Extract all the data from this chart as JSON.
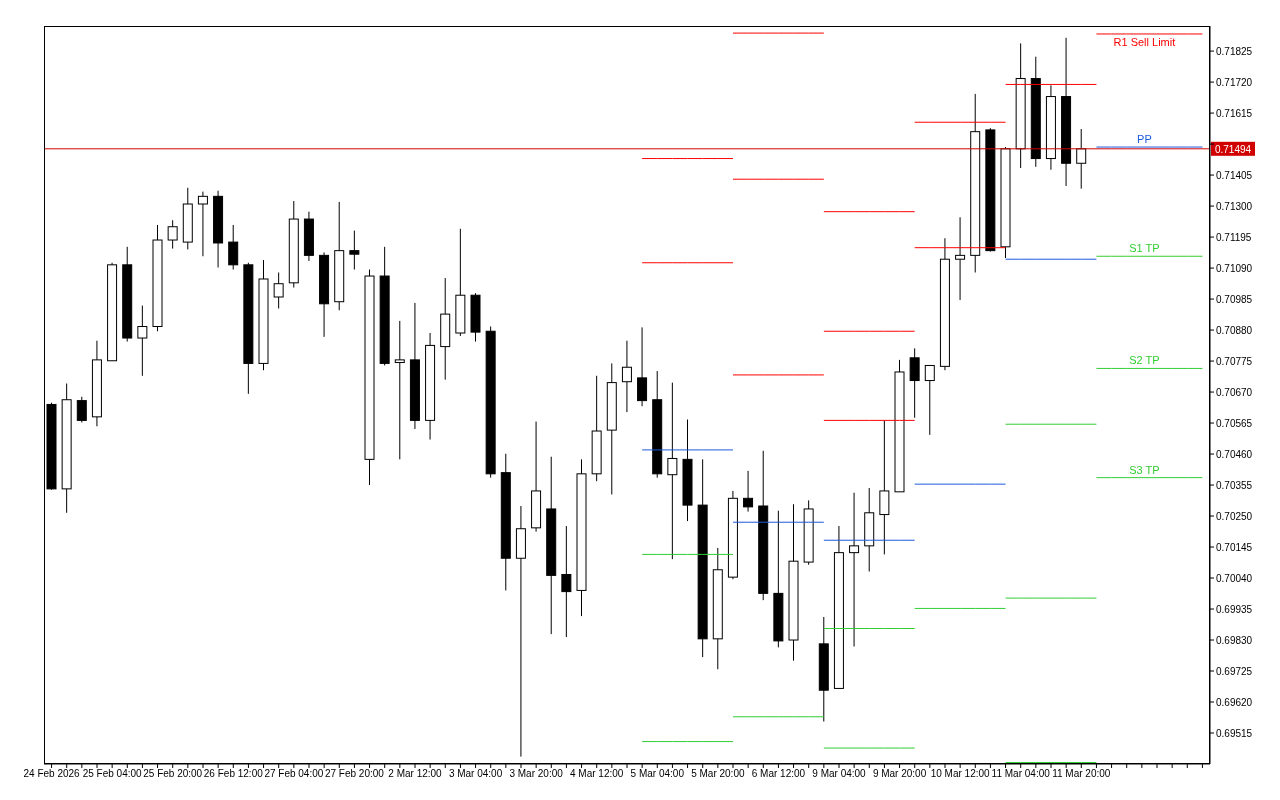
{
  "chart_data": {
    "type": "candlestick",
    "categories": [
      "24 Feb 2026",
      null,
      null,
      null,
      "25 Feb 04:00",
      null,
      null,
      null,
      "25 Feb 20:00",
      null,
      null,
      null,
      "26 Feb 12:00",
      null,
      null,
      null,
      "27 Feb 04:00",
      null,
      null,
      null,
      "27 Feb 20:00",
      null,
      null,
      null,
      "2 Mar 12:00",
      null,
      null,
      null,
      "3 Mar 04:00",
      null,
      null,
      null,
      "3 Mar 20:00",
      null,
      null,
      null,
      "4 Mar 12:00",
      null,
      null,
      null,
      "5 Mar 04:00",
      null,
      null,
      null,
      "5 Mar 20:00",
      null,
      null,
      null,
      "6 Mar 12:00",
      null,
      null,
      null,
      "9 Mar 04:00",
      null,
      null,
      null,
      "9 Mar 20:00",
      null,
      null,
      null,
      "10 Mar 12:00",
      null,
      null,
      null,
      "11 Mar 04:00",
      null,
      null,
      null,
      "11 Mar 20:00",
      null,
      null,
      null,
      null,
      null,
      null,
      null,
      null
    ],
    "ohlc": [
      [
        0.70628,
        0.70634,
        0.70339,
        0.70342
      ],
      [
        0.70342,
        0.70699,
        0.70261,
        0.70644
      ],
      [
        0.70641,
        0.70654,
        0.70567,
        0.70574
      ],
      [
        0.70586,
        0.70844,
        0.70554,
        0.70779
      ],
      [
        0.70776,
        0.71108,
        0.70776,
        0.71101
      ],
      [
        0.71101,
        0.71162,
        0.70841,
        0.70853
      ],
      [
        0.70853,
        0.70963,
        0.70725,
        0.70892
      ],
      [
        0.70892,
        0.71236,
        0.70876,
        0.71185
      ],
      [
        0.71185,
        0.71252,
        0.71156,
        0.7123
      ],
      [
        0.71178,
        0.71362,
        0.71153,
        0.71307
      ],
      [
        0.71307,
        0.71349,
        0.7113,
        0.71333
      ],
      [
        0.71333,
        0.71352,
        0.71092,
        0.71175
      ],
      [
        0.71178,
        0.71236,
        0.71085,
        0.71101
      ],
      [
        0.71101,
        0.71108,
        0.70664,
        0.70767
      ],
      [
        0.70767,
        0.71117,
        0.70744,
        0.71053
      ],
      [
        0.70992,
        0.71075,
        0.70953,
        0.71037
      ],
      [
        0.7104,
        0.71317,
        0.71024,
        0.71256
      ],
      [
        0.71256,
        0.71281,
        0.71114,
        0.71133
      ],
      [
        0.71133,
        0.71143,
        0.70857,
        0.70969
      ],
      [
        0.70976,
        0.71314,
        0.70947,
        0.71149
      ],
      [
        0.71149,
        0.71217,
        0.71085,
        0.71137
      ],
      [
        0.70442,
        0.71085,
        0.70355,
        0.71063
      ],
      [
        0.71063,
        0.71162,
        0.7076,
        0.70767
      ],
      [
        0.7077,
        0.70911,
        0.70442,
        0.70779
      ],
      [
        0.70779,
        0.70972,
        0.70545,
        0.70574
      ],
      [
        0.70574,
        0.7087,
        0.70509,
        0.70828
      ],
      [
        0.70824,
        0.71056,
        0.70712,
        0.70934
      ],
      [
        0.7087,
        0.71223,
        0.7086,
        0.70998
      ],
      [
        0.70998,
        0.71005,
        0.70841,
        0.70873
      ],
      [
        0.70876,
        0.70892,
        0.7038,
        0.70393
      ],
      [
        0.70397,
        0.70461,
        0.69998,
        0.70107
      ],
      [
        0.70107,
        0.70284,
        0.69435,
        0.70207
      ],
      [
        0.7021,
        0.7057,
        0.70197,
        0.70335
      ],
      [
        0.70274,
        0.70451,
        0.6985,
        0.70049
      ],
      [
        0.70052,
        0.70216,
        0.6984,
        0.69994
      ],
      [
        0.69998,
        0.70442,
        0.69911,
        0.70393
      ],
      [
        0.70393,
        0.70725,
        0.70368,
        0.70538
      ],
      [
        0.70541,
        0.70767,
        0.70323,
        0.70702
      ],
      [
        0.70705,
        0.70844,
        0.70602,
        0.70754
      ],
      [
        0.70718,
        0.70889,
        0.70622,
        0.70641
      ],
      [
        0.70644,
        0.70741,
        0.7038,
        0.70393
      ],
      [
        0.7039,
        0.70702,
        0.70104,
        0.70445
      ],
      [
        0.70442,
        0.70577,
        0.70233,
        0.70287
      ],
      [
        0.70287,
        0.70442,
        0.69772,
        0.69834
      ],
      [
        0.69834,
        0.70142,
        0.69731,
        0.70068
      ],
      [
        0.70043,
        0.70335,
        0.70036,
        0.7031
      ],
      [
        0.7031,
        0.70403,
        0.70265,
        0.70281
      ],
      [
        0.70284,
        0.70471,
        0.69965,
        0.69988
      ],
      [
        0.69988,
        0.70268,
        0.69805,
        0.69827
      ],
      [
        0.6983,
        0.7029,
        0.6976,
        0.70097
      ],
      [
        0.70094,
        0.70303,
        0.70085,
        0.70274
      ],
      [
        0.69817,
        0.69908,
        0.69554,
        0.6966
      ],
      [
        0.69666,
        0.70216,
        0.69666,
        0.70126
      ],
      [
        0.70126,
        0.70329,
        0.69808,
        0.70149
      ],
      [
        0.70149,
        0.70345,
        0.70062,
        0.70261
      ],
      [
        0.70255,
        0.70574,
        0.7012,
        0.70335
      ],
      [
        0.70332,
        0.70779,
        0.70332,
        0.70738
      ],
      [
        0.70786,
        0.70818,
        0.70583,
        0.70709
      ],
      [
        0.70709,
        0.7076,
        0.70525,
        0.7076
      ],
      [
        0.70757,
        0.71191,
        0.70744,
        0.7112
      ],
      [
        0.7112,
        0.71262,
        0.70982,
        0.71133
      ],
      [
        0.71133,
        0.7168,
        0.71075,
        0.71552
      ],
      [
        0.71558,
        0.71564,
        0.71146,
        0.71149
      ],
      [
        0.71162,
        0.715,
        0.71124,
        0.71494
      ],
      [
        0.71494,
        0.71851,
        0.71429,
        0.71732
      ],
      [
        0.71732,
        0.71806,
        0.71433,
        0.71461
      ],
      [
        0.71461,
        0.71709,
        0.71423,
        0.71671
      ],
      [
        0.71671,
        0.7187,
        0.71368,
        0.71445
      ],
      [
        0.71445,
        0.71561,
        0.71359,
        0.71494
      ],
      null,
      null,
      null,
      null,
      null,
      null,
      null,
      null
    ],
    "series": [
      {
        "type": "line",
        "color": "#ff0000",
        "values": [
          null,
          null,
          null,
          null,
          null,
          null,
          null,
          null,
          null,
          null,
          null,
          null,
          null,
          null,
          null,
          null,
          null,
          null,
          null,
          null,
          null,
          null,
          null,
          null,
          null,
          null,
          null,
          null,
          null,
          null,
          null,
          null,
          null,
          null,
          null,
          null,
          null,
          null,
          null,
          0.71461,
          0.71461,
          0.71461,
          0.71461,
          0.71461,
          0.71461,
          0.71461,
          null,
          null,
          null,
          null,
          null,
          0.71281,
          0.71281,
          0.71281,
          0.71281,
          0.71281,
          0.71281,
          0.71281,
          null,
          null,
          null,
          null,
          null,
          0.71712,
          0.71712,
          0.71712,
          0.71712,
          0.71712,
          0.71712,
          0.71712,
          null,
          null,
          null,
          null,
          null,
          null,
          null
        ]
      },
      {
        "type": "line",
        "color": "#ff0000",
        "values": [
          null,
          null,
          null,
          null,
          null,
          null,
          null,
          null,
          null,
          null,
          null,
          null,
          null,
          null,
          null,
          null,
          null,
          null,
          null,
          null,
          null,
          null,
          null,
          null,
          null,
          null,
          null,
          null,
          null,
          null,
          null,
          null,
          null,
          null,
          null,
          null,
          null,
          null,
          null,
          0.71108,
          0.71108,
          0.71108,
          0.71108,
          0.71108,
          0.71108,
          0.71108,
          null,
          null,
          null,
          null,
          null,
          0.70876,
          0.70876,
          0.70876,
          0.70876,
          0.70876,
          0.70876,
          0.70876,
          null,
          null,
          null,
          null,
          null,
          null,
          null,
          null,
          null,
          null,
          null,
          null,
          null,
          null,
          null,
          null,
          null,
          null,
          null
        ]
      },
      {
        "type": "line",
        "color": "#ff0000",
        "values": [
          null,
          null,
          null,
          null,
          null,
          null,
          null,
          null,
          null,
          null,
          null,
          null,
          null,
          null,
          null,
          null,
          null,
          null,
          null,
          null,
          null,
          null,
          null,
          null,
          null,
          null,
          null,
          null,
          null,
          null,
          null,
          null,
          null,
          null,
          null,
          null,
          null,
          null,
          null,
          null,
          null,
          null,
          null,
          null,
          null,
          null,
          null,
          null,
          null,
          null,
          null,
          0.70574,
          0.70574,
          0.70574,
          0.70574,
          0.70574,
          0.70574,
          0.70574,
          null,
          null,
          null,
          null,
          null,
          null,
          null,
          null,
          null,
          null,
          null,
          null,
          null,
          null,
          null,
          null,
          null,
          null,
          null
        ]
      },
      {
        "type": "line",
        "color": "#1e5adc",
        "values": [
          null,
          null,
          null,
          null,
          null,
          null,
          null,
          null,
          null,
          null,
          null,
          null,
          null,
          null,
          null,
          null,
          null,
          null,
          null,
          null,
          null,
          null,
          null,
          null,
          null,
          null,
          null,
          null,
          null,
          null,
          null,
          null,
          null,
          null,
          null,
          null,
          null,
          null,
          null,
          0.70474,
          0.70474,
          0.70474,
          0.70474,
          0.70474,
          0.70474,
          0.70474,
          null,
          null,
          null,
          null,
          null,
          0.70168,
          0.70168,
          0.70168,
          0.70168,
          0.70168,
          0.70168,
          0.70168,
          null,
          null,
          null,
          null,
          null,
          0.7112,
          0.7112,
          0.7112,
          0.7112,
          0.7112,
          0.7112,
          0.7112,
          null,
          null,
          null,
          null,
          null,
          null,
          null
        ]
      },
      {
        "type": "line",
        "color": "#32cd32",
        "values": [
          null,
          null,
          null,
          null,
          null,
          null,
          null,
          null,
          null,
          null,
          null,
          null,
          null,
          null,
          null,
          null,
          null,
          null,
          null,
          null,
          null,
          null,
          null,
          null,
          null,
          null,
          null,
          null,
          null,
          null,
          null,
          null,
          null,
          null,
          null,
          null,
          null,
          null,
          null,
          0.7012,
          0.7012,
          0.7012,
          0.7012,
          0.7012,
          0.7012,
          0.7012,
          null,
          null,
          null,
          null,
          null,
          0.69869,
          0.69869,
          0.69869,
          0.69869,
          0.69869,
          0.69869,
          0.69869,
          null,
          null,
          null,
          null,
          null,
          0.70561,
          0.70561,
          0.70561,
          0.70561,
          0.70561,
          0.70561,
          0.70561,
          null,
          null,
          null,
          null,
          null,
          null,
          null
        ]
      },
      {
        "type": "line",
        "color": "#32cd32",
        "values": [
          null,
          null,
          null,
          null,
          null,
          null,
          null,
          null,
          null,
          null,
          null,
          null,
          null,
          null,
          null,
          null,
          null,
          null,
          null,
          null,
          null,
          null,
          null,
          null,
          null,
          null,
          null,
          null,
          null,
          null,
          null,
          null,
          null,
          null,
          null,
          null,
          null,
          null,
          null,
          0.69486,
          0.69486,
          0.69486,
          0.69486,
          0.69486,
          0.69486,
          0.69486,
          null,
          null,
          null,
          null,
          null,
          0.69464,
          0.69464,
          0.69464,
          0.69464,
          0.69464,
          0.69464,
          0.69464,
          null,
          null,
          null,
          null,
          null,
          0.69972,
          0.69972,
          0.69972,
          0.69972,
          0.69972,
          0.69972,
          0.69972,
          null,
          null,
          null,
          null,
          null,
          null,
          null
        ]
      },
      {
        "type": "line",
        "color": "#32cd32",
        "values": [
          null,
          null,
          null,
          null,
          null,
          null,
          null,
          null,
          null,
          null,
          null,
          null,
          null,
          null,
          null,
          null,
          null,
          null,
          null,
          null,
          null,
          null,
          null,
          null,
          null,
          null,
          null,
          null,
          null,
          null,
          null,
          null,
          null,
          null,
          null,
          null,
          null,
          null,
          null,
          null,
          null,
          null,
          null,
          null,
          null,
          null,
          null,
          null,
          null,
          null,
          null,
          null,
          null,
          null,
          null,
          null,
          null,
          null,
          null,
          null,
          null,
          null,
          null,
          0.69415,
          0.69415,
          0.69415,
          0.69415,
          0.69415,
          0.69415,
          0.69415,
          null,
          null,
          null,
          null,
          null,
          null,
          null
        ]
      },
      {
        "type": "line",
        "color": "#ff0000",
        "values": [
          null,
          null,
          null,
          null,
          null,
          null,
          null,
          null,
          null,
          null,
          null,
          null,
          null,
          null,
          null,
          null,
          null,
          null,
          null,
          null,
          null,
          null,
          null,
          null,
          null,
          null,
          null,
          null,
          null,
          null,
          null,
          null,
          null,
          null,
          null,
          null,
          null,
          null,
          null,
          null,
          null,
          null,
          null,
          null,
          null,
          0.71886,
          0.71886,
          0.71886,
          0.71886,
          0.71886,
          0.71886,
          0.71886,
          null,
          null,
          null,
          null,
          null,
          0.71584,
          0.71584,
          0.71584,
          0.71584,
          0.71584,
          0.71584,
          0.71584,
          null,
          null,
          null,
          null,
          null,
          null,
          null,
          null,
          null,
          null,
          null,
          null,
          null
        ]
      },
      {
        "type": "line",
        "color": "#ff0000",
        "values": [
          null,
          null,
          null,
          null,
          null,
          null,
          null,
          null,
          null,
          null,
          null,
          null,
          null,
          null,
          null,
          null,
          null,
          null,
          null,
          null,
          null,
          null,
          null,
          null,
          null,
          null,
          null,
          null,
          null,
          null,
          null,
          null,
          null,
          null,
          null,
          null,
          null,
          null,
          null,
          null,
          null,
          null,
          null,
          null,
          null,
          0.71391,
          0.71391,
          0.71391,
          0.71391,
          0.71391,
          0.71391,
          0.71391,
          null,
          null,
          null,
          null,
          null,
          0.71159,
          0.71159,
          0.71159,
          0.71159,
          0.71159,
          0.71159,
          0.71159,
          null,
          null,
          null,
          null,
          null,
          null,
          null,
          null,
          null,
          null,
          null,
          null,
          null
        ]
      },
      {
        "type": "line",
        "color": "#ff0000",
        "values": [
          null,
          null,
          null,
          null,
          null,
          null,
          null,
          null,
          null,
          null,
          null,
          null,
          null,
          null,
          null,
          null,
          null,
          null,
          null,
          null,
          null,
          null,
          null,
          null,
          null,
          null,
          null,
          null,
          null,
          null,
          null,
          null,
          null,
          null,
          null,
          null,
          null,
          null,
          null,
          null,
          null,
          null,
          null,
          null,
          null,
          0.70728,
          0.70728,
          0.70728,
          0.70728,
          0.70728,
          0.70728,
          0.70728,
          null,
          null,
          null,
          null,
          null,
          null,
          null,
          null,
          null,
          null,
          null,
          null,
          null,
          null,
          null,
          null,
          null,
          null,
          null,
          null,
          null,
          null,
          null,
          null,
          null
        ]
      },
      {
        "type": "line",
        "color": "#1e5adc",
        "values": [
          null,
          null,
          null,
          null,
          null,
          null,
          null,
          null,
          null,
          null,
          null,
          null,
          null,
          null,
          null,
          null,
          null,
          null,
          null,
          null,
          null,
          null,
          null,
          null,
          null,
          null,
          null,
          null,
          null,
          null,
          null,
          null,
          null,
          null,
          null,
          null,
          null,
          null,
          null,
          null,
          null,
          null,
          null,
          null,
          null,
          0.70229,
          0.70229,
          0.70229,
          0.70229,
          0.70229,
          0.70229,
          0.70229,
          null,
          null,
          null,
          null,
          null,
          0.70358,
          0.70358,
          0.70358,
          0.70358,
          0.70358,
          0.70358,
          0.70358,
          null,
          null,
          null,
          null,
          null,
          null,
          null,
          null,
          null,
          null,
          null,
          null,
          null
        ]
      },
      {
        "type": "line",
        "color": "#32cd32",
        "values": [
          null,
          null,
          null,
          null,
          null,
          null,
          null,
          null,
          null,
          null,
          null,
          null,
          null,
          null,
          null,
          null,
          null,
          null,
          null,
          null,
          null,
          null,
          null,
          null,
          null,
          null,
          null,
          null,
          null,
          null,
          null,
          null,
          null,
          null,
          null,
          null,
          null,
          null,
          null,
          null,
          null,
          null,
          null,
          null,
          null,
          0.6957,
          0.6957,
          0.6957,
          0.6957,
          0.6957,
          0.6957,
          0.6957,
          null,
          null,
          null,
          null,
          null,
          0.69937,
          0.69937,
          0.69937,
          0.69937,
          0.69937,
          0.69937,
          0.69937,
          null,
          null,
          null,
          null,
          null,
          null,
          null,
          null,
          null,
          null,
          null,
          null,
          null
        ]
      },
      {
        "type": "line",
        "name": "R1 Sell Limit",
        "color": "#ff0000",
        "values": [
          null,
          null,
          null,
          null,
          null,
          null,
          null,
          null,
          null,
          null,
          null,
          null,
          null,
          null,
          null,
          null,
          null,
          null,
          null,
          null,
          null,
          null,
          null,
          null,
          null,
          null,
          null,
          null,
          null,
          null,
          null,
          null,
          null,
          null,
          null,
          null,
          null,
          null,
          null,
          null,
          null,
          null,
          null,
          null,
          null,
          null,
          null,
          null,
          null,
          null,
          null,
          null,
          null,
          null,
          null,
          null,
          null,
          null,
          null,
          null,
          null,
          null,
          null,
          null,
          null,
          null,
          null,
          null,
          null,
          0.71883,
          0.71883,
          0.71883,
          0.71883,
          0.71883,
          0.71883,
          0.71883,
          0.71883
        ]
      },
      {
        "type": "line",
        "name": "PP",
        "color": "#1e5adc",
        "values": [
          null,
          null,
          null,
          null,
          null,
          null,
          null,
          null,
          null,
          null,
          null,
          null,
          null,
          null,
          null,
          null,
          null,
          null,
          null,
          null,
          null,
          null,
          null,
          null,
          null,
          null,
          null,
          null,
          null,
          null,
          null,
          null,
          null,
          null,
          null,
          null,
          null,
          null,
          null,
          null,
          null,
          null,
          null,
          null,
          null,
          null,
          null,
          null,
          null,
          null,
          null,
          null,
          null,
          null,
          null,
          null,
          null,
          null,
          null,
          null,
          null,
          null,
          null,
          null,
          null,
          null,
          null,
          null,
          null,
          0.715,
          0.715,
          0.715,
          0.715,
          0.715,
          0.715,
          0.715,
          0.715
        ]
      },
      {
        "type": "line",
        "name": "S1 TP",
        "color": "#32cd32",
        "values": [
          null,
          null,
          null,
          null,
          null,
          null,
          null,
          null,
          null,
          null,
          null,
          null,
          null,
          null,
          null,
          null,
          null,
          null,
          null,
          null,
          null,
          null,
          null,
          null,
          null,
          null,
          null,
          null,
          null,
          null,
          null,
          null,
          null,
          null,
          null,
          null,
          null,
          null,
          null,
          null,
          null,
          null,
          null,
          null,
          null,
          null,
          null,
          null,
          null,
          null,
          null,
          null,
          null,
          null,
          null,
          null,
          null,
          null,
          null,
          null,
          null,
          null,
          null,
          null,
          null,
          null,
          null,
          null,
          null,
          0.7113,
          0.7113,
          0.7113,
          0.7113,
          0.7113,
          0.7113,
          0.7113,
          0.7113
        ]
      },
      {
        "type": "line",
        "name": "S2 TP",
        "color": "#32cd32",
        "values": [
          null,
          null,
          null,
          null,
          null,
          null,
          null,
          null,
          null,
          null,
          null,
          null,
          null,
          null,
          null,
          null,
          null,
          null,
          null,
          null,
          null,
          null,
          null,
          null,
          null,
          null,
          null,
          null,
          null,
          null,
          null,
          null,
          null,
          null,
          null,
          null,
          null,
          null,
          null,
          null,
          null,
          null,
          null,
          null,
          null,
          null,
          null,
          null,
          null,
          null,
          null,
          null,
          null,
          null,
          null,
          null,
          null,
          null,
          null,
          null,
          null,
          null,
          null,
          null,
          null,
          null,
          null,
          null,
          null,
          0.7075,
          0.7075,
          0.7075,
          0.7075,
          0.7075,
          0.7075,
          0.7075,
          0.7075
        ]
      },
      {
        "type": "line",
        "name": "S3 TP",
        "color": "#32cd32",
        "values": [
          null,
          null,
          null,
          null,
          null,
          null,
          null,
          null,
          null,
          null,
          null,
          null,
          null,
          null,
          null,
          null,
          null,
          null,
          null,
          null,
          null,
          null,
          null,
          null,
          null,
          null,
          null,
          null,
          null,
          null,
          null,
          null,
          null,
          null,
          null,
          null,
          null,
          null,
          null,
          null,
          null,
          null,
          null,
          null,
          null,
          null,
          null,
          null,
          null,
          null,
          null,
          null,
          null,
          null,
          null,
          null,
          null,
          null,
          null,
          null,
          null,
          null,
          null,
          null,
          null,
          null,
          null,
          null,
          null,
          0.7038,
          0.7038,
          0.7038,
          0.7038,
          0.7038,
          0.7038,
          0.7038,
          0.7038
        ]
      }
    ],
    "ref_lines": [
      {
        "axis": "y",
        "value": 0.71494,
        "label": "0.71494",
        "color": "#d00000"
      }
    ],
    "ylim": [
      0.6941,
      0.7191
    ],
    "yticks": [
      0.71825,
      {
        "value": 0.7172,
        "label": "0.71720"
      },
      0.71615,
      {
        "value": 0.7151,
        "label": null
      },
      0.71405,
      {
        "value": 0.713,
        "label": "0.71300"
      },
      0.71195,
      {
        "value": 0.7109,
        "label": "0.71090"
      },
      0.70985,
      {
        "value": 0.7088,
        "label": "0.70880"
      },
      0.70775,
      {
        "value": 0.7067,
        "label": "0.70670"
      },
      0.70565,
      {
        "value": 0.7046,
        "label": "0.70460"
      },
      0.70355,
      {
        "value": 0.7025,
        "label": "0.70250"
      },
      0.70145,
      {
        "value": 0.7004,
        "label": "0.70040"
      },
      0.69935,
      {
        "value": 0.6983,
        "label": "0.69830"
      },
      0.69725,
      {
        "value": 0.6962,
        "label": "0.69620"
      },
      0.69515
    ],
    "grid": false,
    "legend": false
  }
}
